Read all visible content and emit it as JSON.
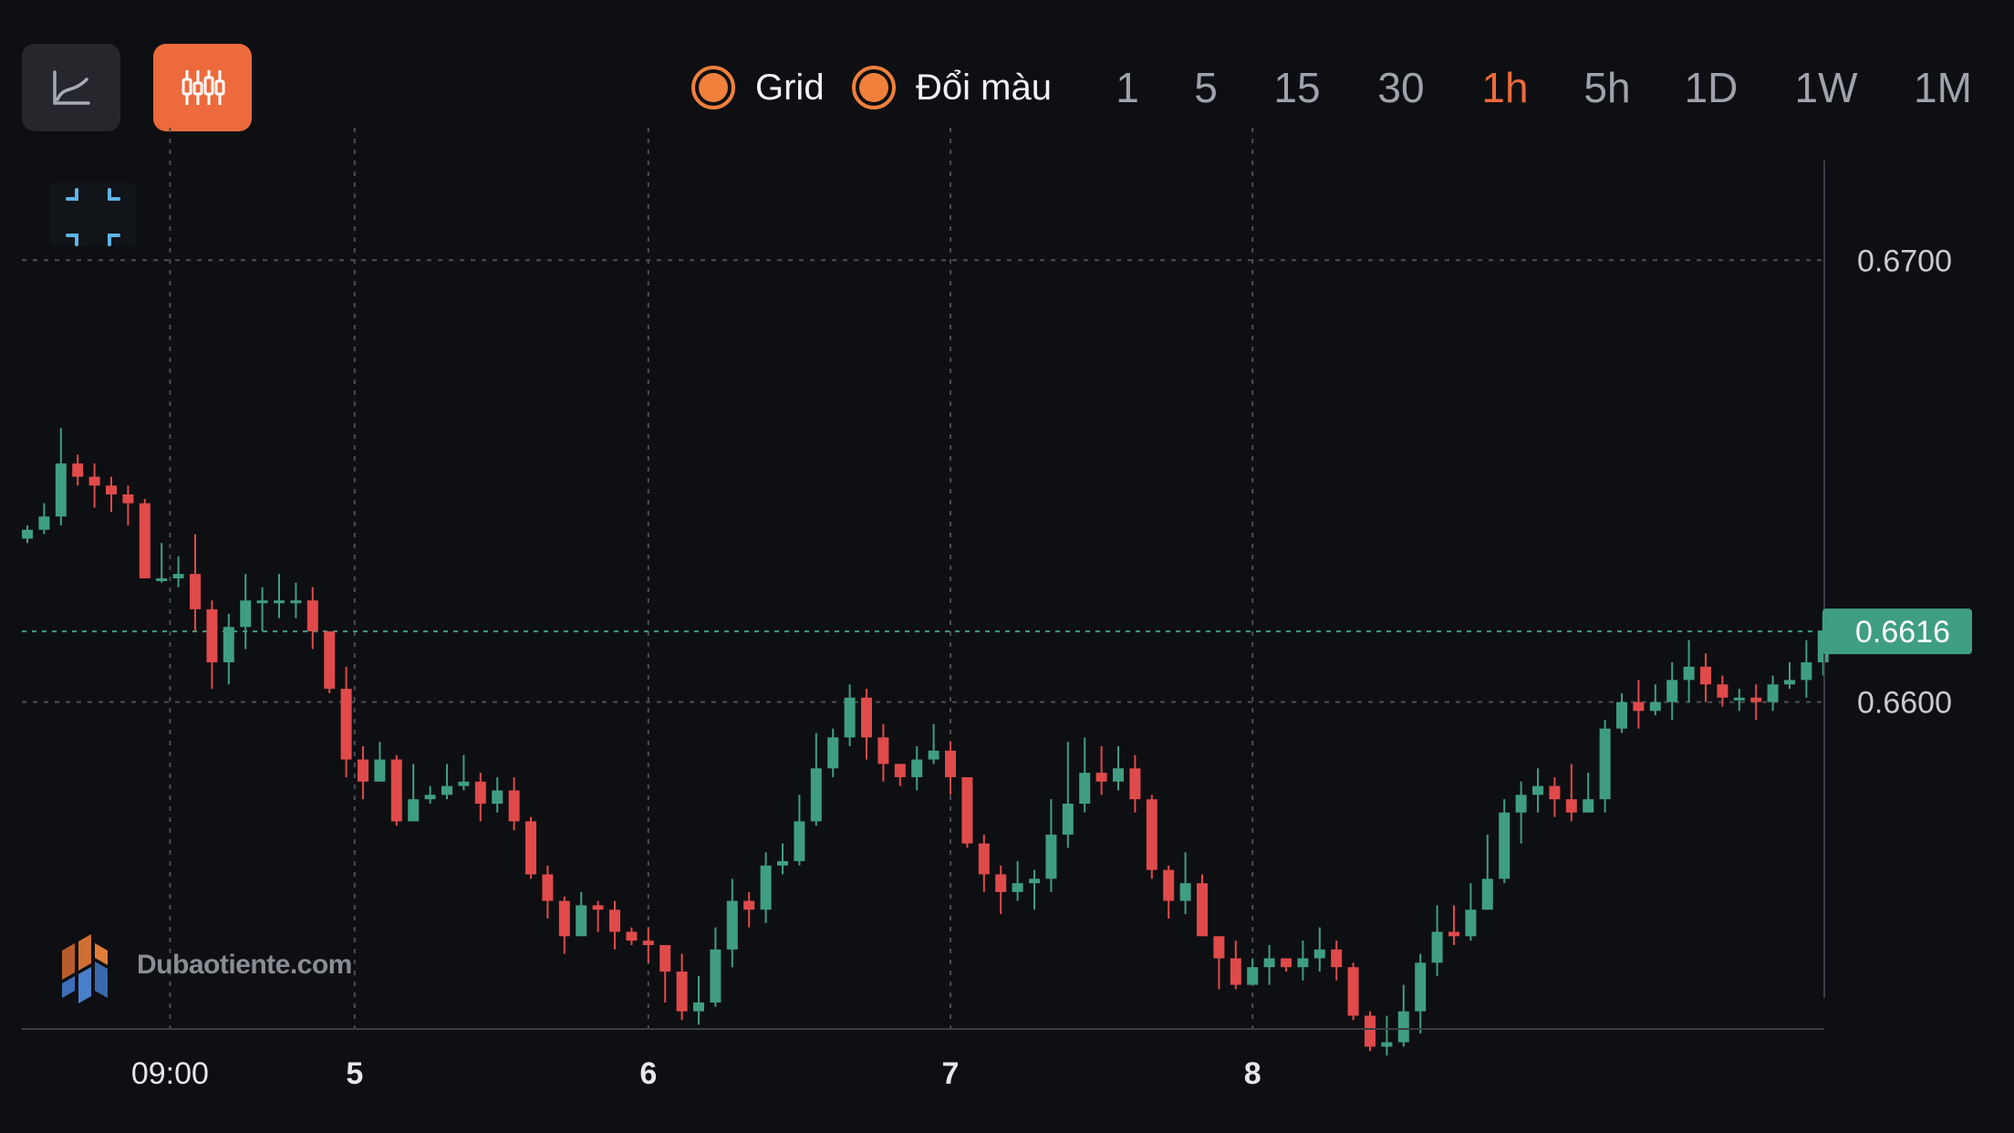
{
  "toolbar": {
    "line_chart_icon": "line-chart-icon",
    "candle_chart_icon": "candlestick-icon",
    "grid_toggle_label": "Grid",
    "color_toggle_label": "Đổi màu",
    "timeframes": [
      "1",
      "5",
      "15",
      "30",
      "1h",
      "5h",
      "1D",
      "1W",
      "1M"
    ],
    "active_timeframe": "1h"
  },
  "watermark": {
    "text": "Dubaotiente.com"
  },
  "colors": {
    "up": "#3f9e82",
    "down": "#e04a4a",
    "accent": "#ec6a3c",
    "price_tag": "#3f9e82"
  },
  "chart_data": {
    "type": "candlestick",
    "x_ticks": [
      "09:00",
      "5",
      "6",
      "7",
      "8"
    ],
    "y_ticks": [
      "0.6700",
      "0.6600"
    ],
    "current_price": "0.6616",
    "ylim": [
      0.6526,
      0.673
    ],
    "grid": true,
    "candles": [
      [
        0.6637,
        0.6639,
        0.664,
        0.6636
      ],
      [
        0.6639,
        0.6642,
        0.6645,
        0.6638
      ],
      [
        0.6642,
        0.6654,
        0.6662,
        0.664
      ],
      [
        0.6654,
        0.6651,
        0.6656,
        0.6649
      ],
      [
        0.6651,
        0.6649,
        0.6654,
        0.6644
      ],
      [
        0.6649,
        0.6647,
        0.6651,
        0.6643
      ],
      [
        0.6647,
        0.6645,
        0.6649,
        0.664
      ],
      [
        0.6645,
        0.6628,
        0.6646,
        0.6628
      ],
      [
        0.6628,
        0.6628,
        0.6636,
        0.6627
      ],
      [
        0.6628,
        0.6629,
        0.6633,
        0.6626
      ],
      [
        0.6629,
        0.6621,
        0.6638,
        0.6616
      ],
      [
        0.6621,
        0.6609,
        0.6623,
        0.6603
      ],
      [
        0.6609,
        0.6617,
        0.662,
        0.6604
      ],
      [
        0.6617,
        0.6623,
        0.6629,
        0.6612
      ],
      [
        0.6623,
        0.6623,
        0.6626,
        0.6616
      ],
      [
        0.6623,
        0.6623,
        0.6629,
        0.6619
      ],
      [
        0.6623,
        0.6623,
        0.6627,
        0.6619
      ],
      [
        0.6623,
        0.6616,
        0.6626,
        0.6612
      ],
      [
        0.6616,
        0.6603,
        0.6616,
        0.6602
      ],
      [
        0.6603,
        0.6587,
        0.6608,
        0.6583
      ],
      [
        0.6587,
        0.6582,
        0.659,
        0.6578
      ],
      [
        0.6582,
        0.6587,
        0.6591,
        0.6584
      ],
      [
        0.6587,
        0.6573,
        0.6588,
        0.6572
      ],
      [
        0.6573,
        0.6578,
        0.6586,
        0.6574
      ],
      [
        0.6578,
        0.6579,
        0.6581,
        0.6577
      ],
      [
        0.6579,
        0.6581,
        0.6586,
        0.6578
      ],
      [
        0.6581,
        0.6582,
        0.6588,
        0.658
      ],
      [
        0.6582,
        0.6577,
        0.6584,
        0.6573
      ],
      [
        0.6577,
        0.658,
        0.6583,
        0.6575
      ],
      [
        0.658,
        0.6573,
        0.6583,
        0.6571
      ],
      [
        0.6573,
        0.6561,
        0.6574,
        0.656
      ],
      [
        0.6561,
        0.6555,
        0.6563,
        0.6551
      ],
      [
        0.6555,
        0.6547,
        0.6556,
        0.6543
      ],
      [
        0.6547,
        0.6554,
        0.6557,
        0.6547
      ],
      [
        0.6554,
        0.6553,
        0.6555,
        0.6548
      ],
      [
        0.6553,
        0.6548,
        0.6555,
        0.6544
      ],
      [
        0.6548,
        0.6546,
        0.6549,
        0.6545
      ],
      [
        0.6546,
        0.6545,
        0.6549,
        0.6541
      ],
      [
        0.6545,
        0.6539,
        0.6545,
        0.6532
      ],
      [
        0.6539,
        0.653,
        0.6543,
        0.6528
      ],
      [
        0.653,
        0.6532,
        0.6538,
        0.6527
      ],
      [
        0.6532,
        0.6544,
        0.6549,
        0.6531
      ],
      [
        0.6544,
        0.6555,
        0.656,
        0.654
      ],
      [
        0.6555,
        0.6553,
        0.6557,
        0.6549
      ],
      [
        0.6553,
        0.6563,
        0.6566,
        0.655
      ],
      [
        0.6563,
        0.6564,
        0.6568,
        0.6561
      ],
      [
        0.6564,
        0.6573,
        0.6579,
        0.6563
      ],
      [
        0.6573,
        0.6585,
        0.6593,
        0.6572
      ],
      [
        0.6585,
        0.6592,
        0.6594,
        0.6583
      ],
      [
        0.6592,
        0.6601,
        0.6604,
        0.659
      ],
      [
        0.6601,
        0.6592,
        0.6603,
        0.6587
      ],
      [
        0.6592,
        0.6586,
        0.6595,
        0.6582
      ],
      [
        0.6586,
        0.6583,
        0.6586,
        0.6581
      ],
      [
        0.6583,
        0.6587,
        0.659,
        0.658
      ],
      [
        0.6587,
        0.6589,
        0.6595,
        0.6586
      ],
      [
        0.6589,
        0.6583,
        0.6591,
        0.6579
      ],
      [
        0.6583,
        0.6568,
        0.6583,
        0.6567
      ],
      [
        0.6568,
        0.6561,
        0.657,
        0.6557
      ],
      [
        0.6561,
        0.6557,
        0.6563,
        0.6552
      ],
      [
        0.6557,
        0.6559,
        0.6564,
        0.6555
      ],
      [
        0.6559,
        0.656,
        0.6562,
        0.6553
      ],
      [
        0.656,
        0.657,
        0.6578,
        0.6557
      ],
      [
        0.657,
        0.6577,
        0.6591,
        0.6567
      ],
      [
        0.6577,
        0.6584,
        0.6592,
        0.6575
      ],
      [
        0.6584,
        0.6582,
        0.659,
        0.6579
      ],
      [
        0.6582,
        0.6585,
        0.659,
        0.658
      ],
      [
        0.6585,
        0.6578,
        0.6588,
        0.6575
      ],
      [
        0.6578,
        0.6562,
        0.6579,
        0.656
      ],
      [
        0.6562,
        0.6555,
        0.6563,
        0.6551
      ],
      [
        0.6555,
        0.6559,
        0.6566,
        0.6552
      ],
      [
        0.6559,
        0.6547,
        0.6561,
        0.6547
      ],
      [
        0.6547,
        0.6542,
        0.6547,
        0.6535
      ],
      [
        0.6542,
        0.6536,
        0.6546,
        0.6535
      ],
      [
        0.6536,
        0.654,
        0.6542,
        0.6536
      ],
      [
        0.654,
        0.6542,
        0.6545,
        0.6536
      ],
      [
        0.6542,
        0.654,
        0.6542,
        0.6539
      ],
      [
        0.654,
        0.6542,
        0.6546,
        0.6537
      ],
      [
        0.6542,
        0.6544,
        0.6549,
        0.6539
      ],
      [
        0.6544,
        0.654,
        0.6546,
        0.6537
      ],
      [
        0.654,
        0.6529,
        0.6541,
        0.6528
      ],
      [
        0.6529,
        0.6522,
        0.653,
        0.6521
      ],
      [
        0.6522,
        0.6523,
        0.6529,
        0.652
      ],
      [
        0.6523,
        0.653,
        0.6536,
        0.6522
      ],
      [
        0.653,
        0.6541,
        0.6543,
        0.6525
      ],
      [
        0.6541,
        0.6548,
        0.6554,
        0.6538
      ],
      [
        0.6548,
        0.6547,
        0.6554,
        0.6545
      ],
      [
        0.6547,
        0.6553,
        0.6559,
        0.6546
      ],
      [
        0.6553,
        0.656,
        0.657,
        0.6553
      ],
      [
        0.656,
        0.6575,
        0.6578,
        0.6559
      ],
      [
        0.6575,
        0.6579,
        0.6582,
        0.6568
      ],
      [
        0.6579,
        0.6581,
        0.6585,
        0.6575
      ],
      [
        0.6581,
        0.6578,
        0.6583,
        0.6574
      ],
      [
        0.6578,
        0.6575,
        0.6586,
        0.6573
      ],
      [
        0.6575,
        0.6578,
        0.6584,
        0.6575
      ],
      [
        0.6578,
        0.6594,
        0.6596,
        0.6575
      ],
      [
        0.6594,
        0.66,
        0.6602,
        0.6593
      ],
      [
        0.66,
        0.6598,
        0.6605,
        0.6594
      ],
      [
        0.6598,
        0.66,
        0.6604,
        0.6597
      ],
      [
        0.66,
        0.6605,
        0.6609,
        0.6596
      ],
      [
        0.6605,
        0.6608,
        0.6614,
        0.66
      ],
      [
        0.6608,
        0.6604,
        0.6611,
        0.66
      ],
      [
        0.6604,
        0.6601,
        0.6606,
        0.6599
      ],
      [
        0.6601,
        0.6601,
        0.6603,
        0.6598
      ],
      [
        0.6601,
        0.66,
        0.6604,
        0.6596
      ],
      [
        0.66,
        0.6604,
        0.6606,
        0.6598
      ],
      [
        0.6604,
        0.6605,
        0.6609,
        0.6603
      ],
      [
        0.6605,
        0.6609,
        0.6614,
        0.6601
      ],
      [
        0.6609,
        0.6616,
        0.6619,
        0.6606
      ]
    ]
  }
}
